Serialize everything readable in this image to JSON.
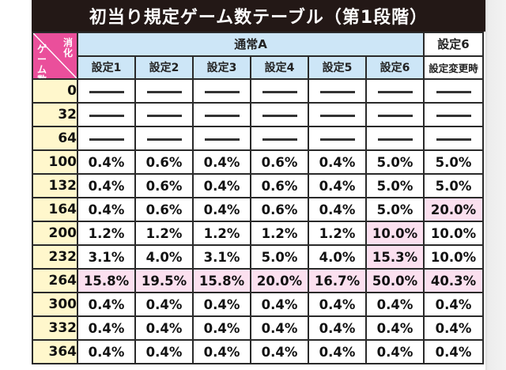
{
  "title": "初当り規定ゲーム数テーブル（第1段階）",
  "header": {
    "corner_top": "消化",
    "corner_bottom": "ゲーム数",
    "group_normal": "通常A",
    "group_set6": "設定6"
  },
  "columns": [
    "設定1",
    "設定2",
    "設定3",
    "設定4",
    "設定5",
    "設定6",
    "設定変更時"
  ],
  "rows": [
    {
      "games": "0",
      "values": [
        "—",
        "—",
        "—",
        "—",
        "—",
        "—",
        "—"
      ]
    },
    {
      "games": "32",
      "values": [
        "—",
        "—",
        "—",
        "—",
        "—",
        "—",
        "—"
      ]
    },
    {
      "games": "64",
      "values": [
        "—",
        "—",
        "—",
        "—",
        "—",
        "—",
        "—"
      ]
    },
    {
      "games": "100",
      "values": [
        "0.4%",
        "0.6%",
        "0.4%",
        "0.6%",
        "0.4%",
        "5.0%",
        "5.0%"
      ]
    },
    {
      "games": "132",
      "values": [
        "0.4%",
        "0.6%",
        "0.4%",
        "0.6%",
        "0.4%",
        "5.0%",
        "5.0%"
      ]
    },
    {
      "games": "164",
      "values": [
        "0.4%",
        "0.6%",
        "0.4%",
        "0.6%",
        "0.4%",
        "5.0%",
        "20.0%"
      ],
      "highlight": [
        6
      ]
    },
    {
      "games": "200",
      "values": [
        "1.2%",
        "1.2%",
        "1.2%",
        "1.2%",
        "1.2%",
        "10.0%",
        "10.0%"
      ],
      "highlight": [
        5
      ]
    },
    {
      "games": "232",
      "values": [
        "3.1%",
        "4.0%",
        "3.1%",
        "5.0%",
        "4.0%",
        "15.3%",
        "10.0%"
      ],
      "highlight": [
        5
      ]
    },
    {
      "games": "264",
      "values": [
        "15.8%",
        "19.5%",
        "15.8%",
        "20.0%",
        "16.7%",
        "50.0%",
        "40.3%"
      ],
      "highlight": [
        0,
        1,
        2,
        3,
        4,
        5,
        6
      ]
    },
    {
      "games": "300",
      "values": [
        "0.4%",
        "0.4%",
        "0.4%",
        "0.4%",
        "0.4%",
        "0.4%",
        "0.4%"
      ]
    },
    {
      "games": "332",
      "values": [
        "0.4%",
        "0.4%",
        "0.4%",
        "0.4%",
        "0.4%",
        "0.4%",
        "0.4%"
      ]
    },
    {
      "games": "364",
      "values": [
        "0.4%",
        "0.4%",
        "0.4%",
        "0.4%",
        "0.4%",
        "0.4%",
        "0.4%"
      ]
    }
  ],
  "colors": {
    "title_bg": "#231816",
    "corner_bg": "#ea4f9b",
    "header_bg": "#cde6f7",
    "games_bg": "#fff7cc",
    "highlight_bg": "#fbe0ef"
  }
}
